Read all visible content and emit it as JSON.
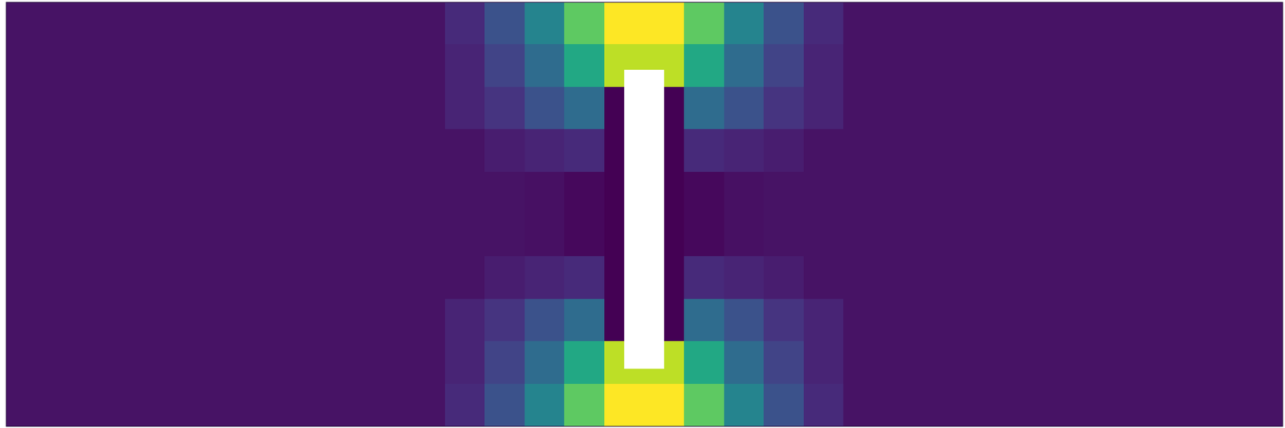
{
  "chart_data": {
    "type": "heatmap",
    "xlim": [
      0,
      32
    ],
    "ylim": [
      0,
      10
    ],
    "tick_labels": false,
    "grid": false,
    "color": "viridis",
    "zlim": [
      0,
      1
    ],
    "obstacle": {
      "x": [
        15.5,
        16.5
      ],
      "y": [
        1.6,
        8.65
      ]
    },
    "cells": [
      [
        0.05,
        0.05,
        0.05,
        0.05,
        0.05,
        0.05,
        0.05,
        0.05,
        0.05,
        0.05,
        0.05,
        0.12,
        0.25,
        0.45,
        0.75,
        1.0,
        1.0,
        0.75,
        0.45,
        0.25,
        0.12,
        0.05,
        0.05,
        0.05,
        0.05,
        0.05,
        0.05,
        0.05,
        0.05,
        0.05,
        0.05,
        0.05
      ],
      [
        0.05,
        0.05,
        0.05,
        0.05,
        0.05,
        0.05,
        0.05,
        0.05,
        0.05,
        0.05,
        0.05,
        0.1,
        0.2,
        0.35,
        0.6,
        0.9,
        0.9,
        0.6,
        0.35,
        0.2,
        0.1,
        0.05,
        0.05,
        0.05,
        0.05,
        0.05,
        0.05,
        0.05,
        0.05,
        0.05,
        0.05,
        0.05
      ],
      [
        0.05,
        0.05,
        0.05,
        0.05,
        0.05,
        0.05,
        0.05,
        0.05,
        0.05,
        0.05,
        0.05,
        0.1,
        0.15,
        0.25,
        0.35,
        0,
        0,
        0.35,
        0.25,
        0.15,
        0.1,
        0.05,
        0.05,
        0.05,
        0.05,
        0.05,
        0.05,
        0.05,
        0.05,
        0.05,
        0.05,
        0.05
      ],
      [
        0.05,
        0.05,
        0.05,
        0.05,
        0.05,
        0.05,
        0.05,
        0.05,
        0.05,
        0.05,
        0.05,
        0.05,
        0.08,
        0.1,
        0.12,
        0,
        0,
        0.12,
        0.1,
        0.08,
        0.05,
        0.05,
        0.05,
        0.05,
        0.05,
        0.05,
        0.05,
        0.05,
        0.05,
        0.05,
        0.05,
        0.05
      ],
      [
        0.05,
        0.05,
        0.05,
        0.05,
        0.05,
        0.05,
        0.05,
        0.05,
        0.05,
        0.05,
        0.05,
        0.05,
        0.05,
        0.04,
        0.02,
        0,
        0,
        0.02,
        0.04,
        0.05,
        0.05,
        0.05,
        0.05,
        0.05,
        0.05,
        0.05,
        0.05,
        0.05,
        0.05,
        0.05,
        0.05,
        0.05
      ],
      [
        0.05,
        0.05,
        0.05,
        0.05,
        0.05,
        0.05,
        0.05,
        0.05,
        0.05,
        0.05,
        0.05,
        0.05,
        0.05,
        0.04,
        0.02,
        0,
        0,
        0.02,
        0.04,
        0.05,
        0.05,
        0.05,
        0.05,
        0.05,
        0.05,
        0.05,
        0.05,
        0.05,
        0.05,
        0.05,
        0.05,
        0.05
      ],
      [
        0.05,
        0.05,
        0.05,
        0.05,
        0.05,
        0.05,
        0.05,
        0.05,
        0.05,
        0.05,
        0.05,
        0.05,
        0.08,
        0.1,
        0.12,
        0,
        0,
        0.12,
        0.1,
        0.08,
        0.05,
        0.05,
        0.05,
        0.05,
        0.05,
        0.05,
        0.05,
        0.05,
        0.05,
        0.05,
        0.05,
        0.05
      ],
      [
        0.05,
        0.05,
        0.05,
        0.05,
        0.05,
        0.05,
        0.05,
        0.05,
        0.05,
        0.05,
        0.05,
        0.1,
        0.15,
        0.25,
        0.35,
        0,
        0,
        0.35,
        0.25,
        0.15,
        0.1,
        0.05,
        0.05,
        0.05,
        0.05,
        0.05,
        0.05,
        0.05,
        0.05,
        0.05,
        0.05,
        0.05
      ],
      [
        0.05,
        0.05,
        0.05,
        0.05,
        0.05,
        0.05,
        0.05,
        0.05,
        0.05,
        0.05,
        0.05,
        0.1,
        0.2,
        0.35,
        0.6,
        0.9,
        0.9,
        0.6,
        0.35,
        0.2,
        0.1,
        0.05,
        0.05,
        0.05,
        0.05,
        0.05,
        0.05,
        0.05,
        0.05,
        0.05,
        0.05,
        0.05
      ],
      [
        0.05,
        0.05,
        0.05,
        0.05,
        0.05,
        0.05,
        0.05,
        0.05,
        0.05,
        0.05,
        0.05,
        0.12,
        0.25,
        0.45,
        0.75,
        1.0,
        1.0,
        0.75,
        0.45,
        0.25,
        0.12,
        0.05,
        0.05,
        0.05,
        0.05,
        0.05,
        0.05,
        0.05,
        0.05,
        0.05,
        0.05,
        0.05
      ]
    ]
  }
}
